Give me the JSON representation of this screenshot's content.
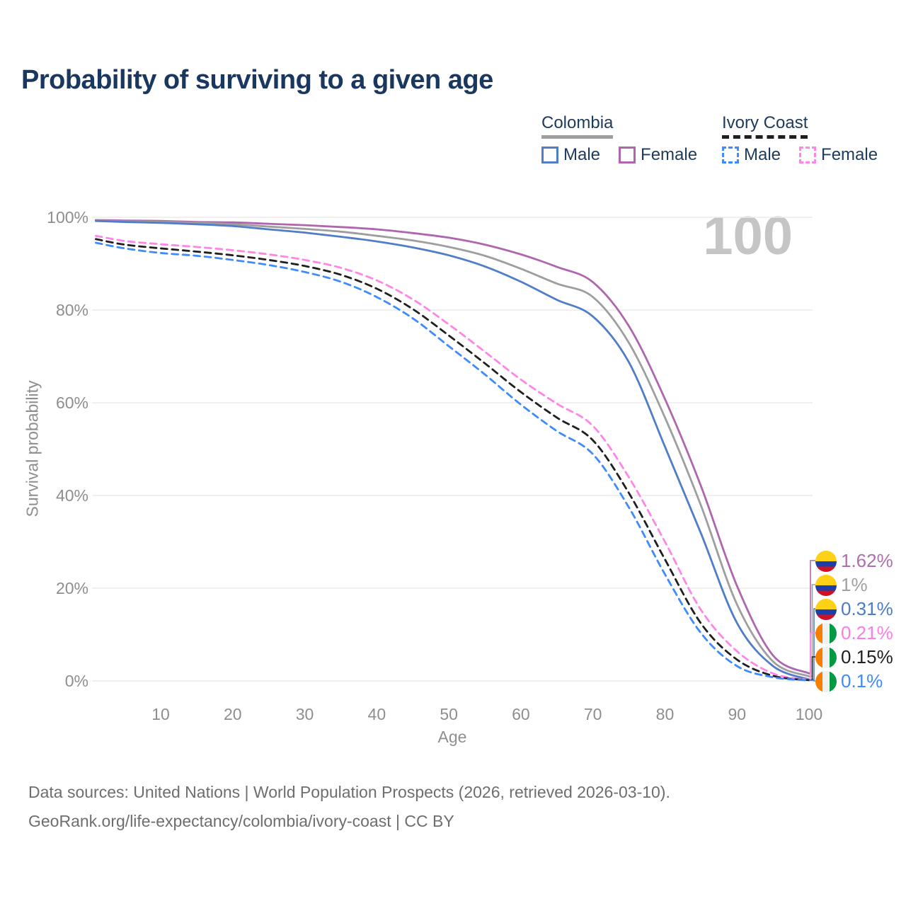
{
  "title": "Probability of surviving to a given age",
  "watermark": "100",
  "legend": {
    "groups": [
      {
        "name": "Colombia",
        "line_style": "solid",
        "underline_color": "#9e9e9e",
        "items": [
          {
            "label": "Male",
            "color": "#4f7dc8"
          },
          {
            "label": "Female",
            "color": "#b066ae"
          }
        ]
      },
      {
        "name": "Ivory Coast",
        "line_style": "dashed",
        "underline_color": "#1f1f1f",
        "items": [
          {
            "label": "Male",
            "color": "#3d8bfd"
          },
          {
            "label": "Female",
            "color": "#ff85e6"
          }
        ]
      }
    ]
  },
  "axes": {
    "y": {
      "label": "Survival probability",
      "ticks": [
        "0%",
        "20%",
        "40%",
        "60%",
        "80%",
        "100%"
      ]
    },
    "x": {
      "label": "Age",
      "ticks": [
        10,
        20,
        30,
        40,
        50,
        60,
        70,
        80,
        90,
        100
      ]
    }
  },
  "chart_data": {
    "type": "line",
    "title": "Probability of surviving to a given age",
    "xlabel": "Age",
    "ylabel": "Survival probability",
    "xlim": [
      1,
      100
    ],
    "ylim": [
      0,
      100
    ],
    "grid": "horizontal",
    "legend_position": "top-right",
    "x": [
      1,
      5,
      10,
      15,
      20,
      25,
      30,
      35,
      40,
      45,
      50,
      55,
      60,
      65,
      70,
      75,
      80,
      85,
      90,
      95,
      100
    ],
    "series": [
      {
        "name": "Colombia Female",
        "country": "Colombia",
        "sex": "Female",
        "style": "solid",
        "color": "#b066ae",
        "values": [
          99.4,
          99.3,
          99.2,
          99.0,
          98.9,
          98.6,
          98.3,
          97.9,
          97.4,
          96.6,
          95.6,
          94.1,
          92.0,
          89.3,
          86.0,
          76.5,
          60.8,
          42.0,
          20.5,
          5.5,
          1.62
        ],
        "end_label": {
          "text": "1.62%",
          "color": "#ad6fad",
          "flag": "colombia"
        }
      },
      {
        "name": "Colombia",
        "country": "Colombia",
        "sex": "Both",
        "style": "solid",
        "color": "#9e9e9e",
        "values": [
          99.3,
          99.1,
          99.0,
          98.8,
          98.5,
          98.0,
          97.5,
          96.9,
          96.0,
          95.0,
          93.6,
          91.7,
          88.9,
          85.7,
          82.8,
          72.9,
          56.8,
          37.8,
          16.5,
          4.2,
          1.0
        ],
        "end_label": {
          "text": "1%",
          "color": "#a0a0a0",
          "flag": "colombia"
        }
      },
      {
        "name": "Colombia Male",
        "country": "Colombia",
        "sex": "Male",
        "style": "solid",
        "color": "#4f7dc8",
        "values": [
          99.2,
          99.0,
          98.8,
          98.5,
          98.1,
          97.4,
          96.7,
          95.8,
          94.8,
          93.5,
          91.8,
          89.4,
          86.1,
          82.2,
          78.6,
          68.7,
          50.5,
          31.8,
          12.5,
          3.2,
          0.31
        ],
        "end_label": {
          "text": "0.31%",
          "color": "#4a7cc9",
          "flag": "colombia"
        }
      },
      {
        "name": "Ivory Coast Female",
        "country": "Ivory Coast",
        "sex": "Female",
        "style": "dashed",
        "color": "#ff85e6",
        "values": [
          96.0,
          94.9,
          94.2,
          93.6,
          92.9,
          92.0,
          90.8,
          89.1,
          86.4,
          82.3,
          76.9,
          71.0,
          65.0,
          59.8,
          55.0,
          43.9,
          30.0,
          15.3,
          6.4,
          1.6,
          0.21
        ],
        "end_label": {
          "text": "0.21%",
          "color": "#ff7ce8",
          "flag": "ivory-coast"
        }
      },
      {
        "name": "Ivory Coast",
        "country": "Ivory Coast",
        "sex": "Both",
        "style": "dashed",
        "color": "#1f1f1f",
        "values": [
          95.3,
          94.1,
          93.3,
          92.6,
          91.8,
          90.8,
          89.5,
          87.6,
          84.6,
          80.2,
          74.5,
          68.5,
          62.3,
          56.8,
          51.9,
          40.5,
          26.2,
          12.4,
          4.6,
          1.1,
          0.15
        ],
        "end_label": {
          "text": "0.15%",
          "color": "#1f1f1f",
          "flag": "ivory-coast"
        }
      },
      {
        "name": "Ivory Coast Male",
        "country": "Ivory Coast",
        "sex": "Male",
        "style": "dashed",
        "color": "#3d8bfd",
        "values": [
          94.5,
          93.3,
          92.3,
          91.7,
          90.8,
          89.7,
          88.2,
          86.1,
          82.8,
          78.2,
          72.2,
          66.1,
          59.6,
          53.9,
          48.9,
          37.4,
          23.0,
          10.3,
          3.2,
          0.8,
          0.1
        ],
        "end_label": {
          "text": "0.1%",
          "color": "#3d8bfd",
          "flag": "ivory-coast"
        }
      }
    ]
  },
  "footer": {
    "line1": "Data sources: United Nations | World Population Prospects (2026, retrieved 2026-03-10).",
    "line2": "GeoRank.org/life-expectancy/colombia/ivory-coast | CC BY"
  },
  "colors": {
    "title": "#19375f",
    "legend_text": "#1e3a5c",
    "axis_text": "#8e8e8e",
    "gridline": "#ebebeb",
    "watermark": "#c5c5c5",
    "footer_text": "#6e6e6e",
    "background": "#ffffff"
  }
}
